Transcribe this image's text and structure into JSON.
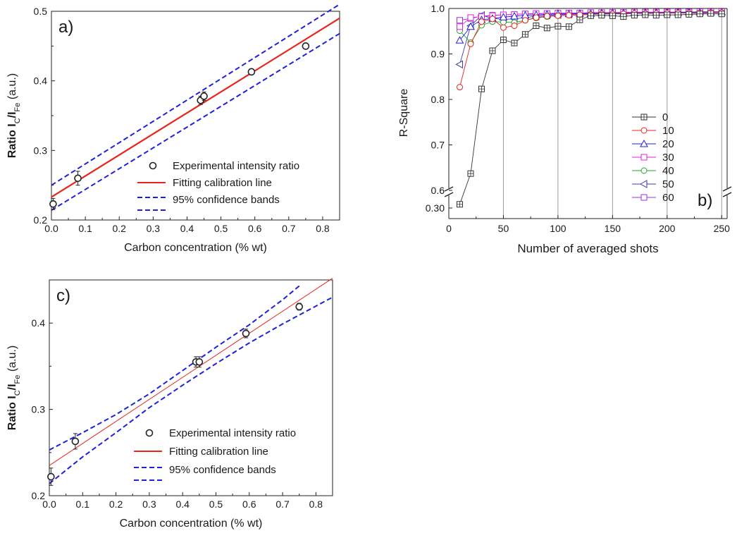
{
  "chart_data": [
    {
      "panel": "a)",
      "type": "scatter",
      "xlabel": "Carbon concentration (% wt)",
      "ylabel": {
        "prefix": "Ratio I",
        "sub1": "C",
        "mid": "/I",
        "sub2": "Fe",
        "suffix": " (a.u.)"
      },
      "xlim": [
        0,
        0.85
      ],
      "ylim": [
        0.2,
        0.5
      ],
      "xticks": [
        "0.0",
        "0.1",
        "0.2",
        "0.3",
        "0.4",
        "0.5",
        "0.6",
        "0.7",
        "0.8"
      ],
      "yticks": [
        "0.2",
        "0.3",
        "0.4",
        "0.5"
      ],
      "grid": false,
      "legend": [
        "Experimental intensity ratio",
        "Fitting calibration line",
        "95% confidence bands",
        ""
      ],
      "legend_placement": "bottom-right",
      "colors": {
        "points": "#222222",
        "fit": "#e8241c",
        "bands": "#1f1fe0"
      },
      "points": [
        {
          "x": 0.005,
          "y": 0.223,
          "err": 0.008
        },
        {
          "x": 0.078,
          "y": 0.26,
          "err": 0.01
        },
        {
          "x": 0.44,
          "y": 0.372,
          "err": 0.006
        },
        {
          "x": 0.45,
          "y": 0.378,
          "err": 0.006
        },
        {
          "x": 0.59,
          "y": 0.413,
          "err": 0.004
        },
        {
          "x": 0.75,
          "y": 0.45,
          "err": 0.004
        }
      ],
      "fit_line": {
        "x": [
          0.0,
          0.85
        ],
        "y": [
          0.233,
          0.49
        ]
      },
      "upper_band": {
        "x": [
          0.0,
          0.85
        ],
        "y": [
          0.25,
          0.51
        ]
      },
      "lower_band": {
        "x": [
          0.0,
          0.85
        ],
        "y": [
          0.214,
          0.468
        ]
      }
    },
    {
      "panel": "b)",
      "type": "line",
      "xlabel": "Number of averaged shots",
      "ylabel": "R-Square",
      "xlim": [
        0,
        255
      ],
      "xticks": [
        "0",
        "50",
        "100",
        "150",
        "200",
        "250"
      ],
      "yticks": [
        "0.30",
        "0.6",
        "0.7",
        "0.8",
        "0.9",
        "1.0"
      ],
      "y_break": {
        "lower": [
          0.2,
          0.4
        ],
        "upper": [
          0.6,
          1.0
        ]
      },
      "grid": "vertical at 50,100,150,200,250",
      "legend_placement": "center-right",
      "x": [
        10,
        20,
        30,
        40,
        50,
        60,
        70,
        80,
        90,
        100,
        110,
        120,
        130,
        140,
        150,
        160,
        170,
        180,
        190,
        200,
        210,
        220,
        230,
        240,
        250
      ],
      "series": [
        {
          "name": "0",
          "color": "#333333",
          "marker": "square-x",
          "values": [
            0.335,
            0.637,
            0.823,
            0.907,
            0.931,
            0.924,
            0.943,
            0.962,
            0.957,
            0.961,
            0.96,
            0.975,
            0.984,
            0.985,
            0.984,
            0.982,
            0.985,
            0.986,
            0.985,
            0.986,
            0.986,
            0.987,
            0.988,
            0.989,
            0.988
          ]
        },
        {
          "name": "10",
          "color": "#e8241c",
          "marker": "circle",
          "values": [
            0.827,
            0.922,
            0.971,
            0.977,
            0.958,
            0.962,
            0.974,
            0.98,
            0.983,
            0.984,
            0.985,
            0.986,
            0.987,
            0.988,
            0.988,
            0.988,
            0.989,
            0.989,
            0.989,
            0.99,
            0.99,
            0.99,
            0.99,
            0.991,
            0.991
          ]
        },
        {
          "name": "20",
          "color": "#1f1fe0",
          "marker": "triangle-up",
          "values": [
            0.93,
            0.96,
            0.975,
            0.978,
            0.981,
            0.983,
            0.985,
            0.986,
            0.987,
            0.988,
            0.988,
            0.989,
            0.989,
            0.99,
            0.99,
            0.99,
            0.99,
            0.991,
            0.991,
            0.991,
            0.991,
            0.992,
            0.992,
            0.992,
            0.992
          ]
        },
        {
          "name": "30",
          "color": "#e020e0",
          "marker": "square",
          "values": [
            0.96,
            0.98,
            0.982,
            0.984,
            0.986,
            0.987,
            0.988,
            0.989,
            0.989,
            0.99,
            0.99,
            0.99,
            0.991,
            0.991,
            0.991,
            0.991,
            0.992,
            0.992,
            0.992,
            0.992,
            0.992,
            0.992,
            0.993,
            0.993,
            0.993
          ]
        },
        {
          "name": "40",
          "color": "#2ca02c",
          "marker": "circle",
          "values": [
            0.951,
            0.925,
            0.963,
            0.971,
            0.97,
            0.969,
            0.974,
            0.979,
            0.982,
            0.984,
            0.985,
            0.986,
            0.987,
            0.988,
            0.988,
            0.989,
            0.989,
            0.989,
            0.99,
            0.99,
            0.99,
            0.99,
            0.991,
            0.991,
            0.991
          ]
        },
        {
          "name": "50",
          "color": "#3b3bb0",
          "marker": "triangle-left",
          "values": [
            0.877,
            0.962,
            0.985,
            0.978,
            0.976,
            0.977,
            0.98,
            0.983,
            0.985,
            0.986,
            0.987,
            0.988,
            0.988,
            0.989,
            0.989,
            0.99,
            0.99,
            0.99,
            0.99,
            0.991,
            0.991,
            0.991,
            0.991,
            0.991,
            0.992
          ]
        },
        {
          "name": "60",
          "color": "#9b30e0",
          "marker": "square",
          "values": [
            0.974,
            0.978,
            0.983,
            0.985,
            0.986,
            0.987,
            0.988,
            0.988,
            0.989,
            0.989,
            0.99,
            0.99,
            0.99,
            0.99,
            0.991,
            0.991,
            0.991,
            0.991,
            0.991,
            0.992,
            0.992,
            0.992,
            0.992,
            0.992,
            0.992
          ]
        }
      ]
    },
    {
      "panel": "c)",
      "type": "scatter",
      "xlabel": "Carbon concentration (% wt)",
      "ylabel": {
        "prefix": "Ratio I",
        "sub1": "C",
        "mid": "/I",
        "sub2": "Fe",
        "suffix": " (a.u.)"
      },
      "xlim": [
        0,
        0.85
      ],
      "ylim": [
        0.2,
        0.45
      ],
      "xticks": [
        "0.0",
        "0.1",
        "0.2",
        "0.3",
        "0.4",
        "0.5",
        "0.6",
        "0.7",
        "0.8"
      ],
      "yticks": [
        "0.2",
        "0.3",
        "0.4"
      ],
      "grid": false,
      "legend": [
        "Experimental intensity ratio",
        "Fitting calibration line",
        "95% confidence bands",
        ""
      ],
      "legend_placement": "bottom-right",
      "colors": {
        "points": "#222222",
        "fit": "#e8241c",
        "bands": "#1f1fe0"
      },
      "points": [
        {
          "x": 0.005,
          "y": 0.222,
          "err": 0.01
        },
        {
          "x": 0.078,
          "y": 0.263,
          "err": 0.009
        },
        {
          "x": 0.44,
          "y": 0.355,
          "err": 0.006
        },
        {
          "x": 0.45,
          "y": 0.355,
          "err": 0.006
        },
        {
          "x": 0.59,
          "y": 0.388,
          "err": 0.005
        },
        {
          "x": 0.75,
          "y": 0.419,
          "err": 0.004
        }
      ],
      "fit_line": {
        "x": [
          0.0,
          0.85
        ],
        "y": [
          0.235,
          0.452
        ]
      },
      "upper_band": {
        "x": [
          0.0,
          0.1,
          0.2,
          0.3,
          0.4,
          0.5,
          0.6,
          0.7,
          0.75
        ],
        "y": [
          0.253,
          0.273,
          0.294,
          0.318,
          0.345,
          0.372,
          0.398,
          0.427,
          0.443
        ]
      },
      "lower_band": {
        "x": [
          0.0,
          0.1,
          0.2,
          0.3,
          0.4,
          0.5,
          0.6,
          0.7,
          0.85
        ],
        "y": [
          0.214,
          0.245,
          0.273,
          0.302,
          0.328,
          0.353,
          0.377,
          0.399,
          0.43
        ]
      }
    }
  ]
}
